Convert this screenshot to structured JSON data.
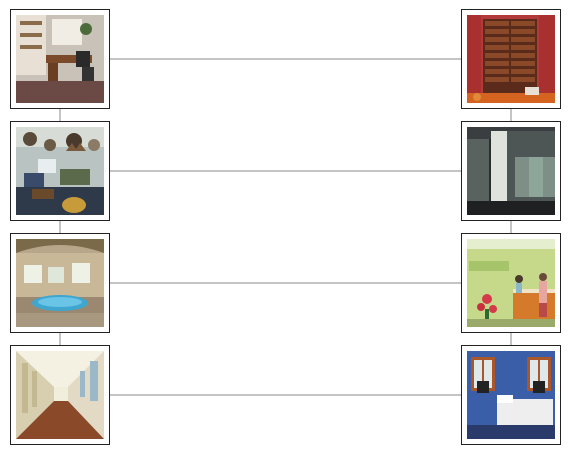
{
  "pairs": [
    {
      "left": {
        "name": "home-office-photo",
        "kind": "office"
      },
      "right": {
        "name": "wine-cellar-photo",
        "kind": "cellar"
      }
    },
    {
      "left": {
        "name": "trophy-room-photo",
        "kind": "trophy"
      },
      "right": {
        "name": "basement-room-photo",
        "kind": "basement"
      }
    },
    {
      "left": {
        "name": "indoor-hot-tub-photo",
        "kind": "hottub"
      },
      "right": {
        "name": "reception-desk-photo",
        "kind": "reception"
      }
    },
    {
      "left": {
        "name": "hallway-photo",
        "kind": "hallway"
      },
      "right": {
        "name": "bedroom-photo",
        "kind": "bedroom"
      }
    }
  ],
  "colors": {
    "connector": "#888888",
    "frame": "#222222"
  }
}
